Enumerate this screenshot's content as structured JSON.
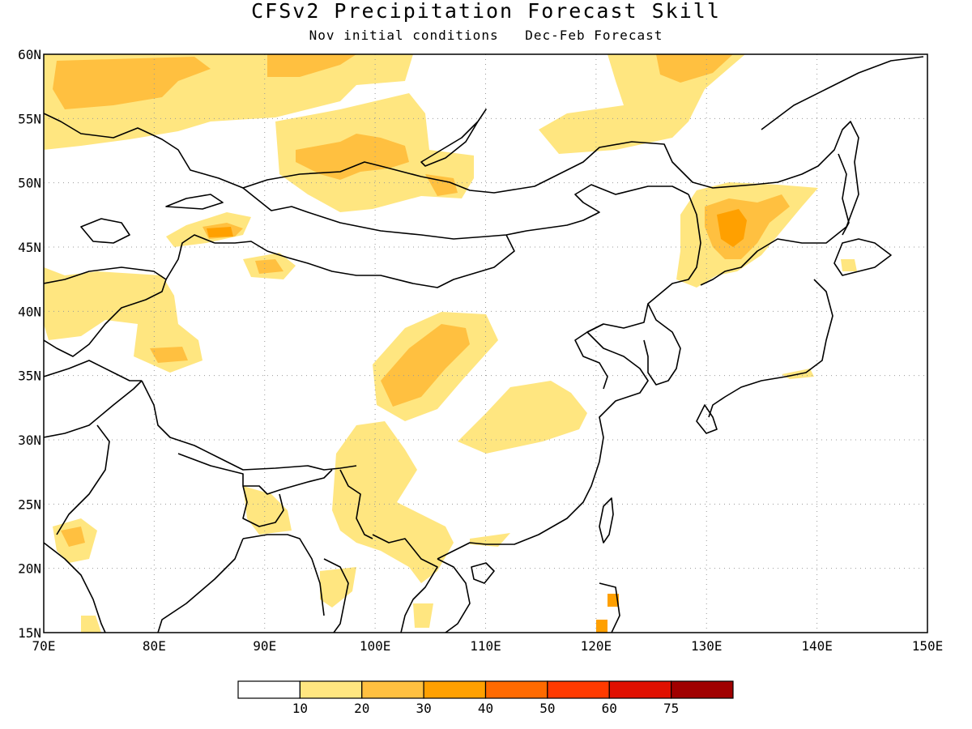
{
  "header": {
    "title": "CFSv2 Precipitation Forecast Skill",
    "subtitle_left": "Nov initial conditions",
    "subtitle_right": "Dec-Feb Forecast"
  },
  "map": {
    "lon_range": [
      70,
      150
    ],
    "lat_range": [
      15,
      60
    ],
    "lon_ticks": [
      "70E",
      "80E",
      "90E",
      "100E",
      "110E",
      "120E",
      "130E",
      "140E",
      "150E"
    ],
    "lat_ticks": [
      "15N",
      "20N",
      "25N",
      "30N",
      "35N",
      "40N",
      "45N",
      "50N",
      "55N",
      "60N"
    ],
    "gridlines": "dotted",
    "coastlines": true
  },
  "colorbar": {
    "colors": [
      "#ffffff",
      "#ffe680",
      "#ffc040",
      "#ffa000",
      "#ff6a00",
      "#ff3a00",
      "#e01000",
      "#a00000"
    ],
    "labels": [
      "10",
      "20",
      "30",
      "40",
      "50",
      "60",
      "75"
    ]
  },
  "skill_levels": {
    "light": "#ffe680",
    "medium": "#ffc040",
    "strong": "#ffa000"
  }
}
